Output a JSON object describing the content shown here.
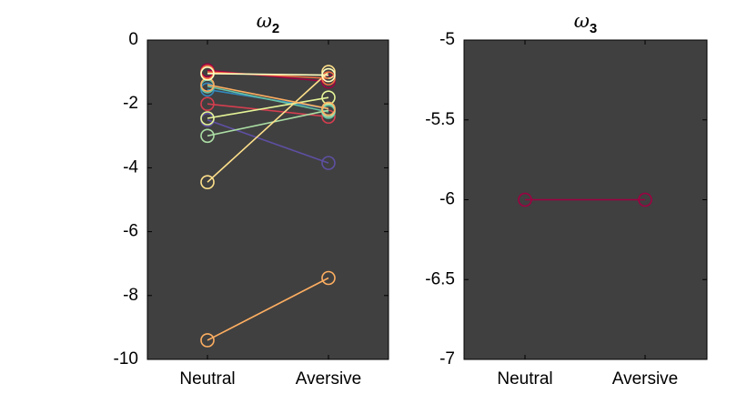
{
  "chart_data": [
    {
      "type": "line",
      "title": "ω",
      "title_subscript": "2",
      "categories": [
        "Neutral",
        "Aversive"
      ],
      "ylim": [
        -10,
        0
      ],
      "yticks": [
        0,
        -2,
        -4,
        -6,
        -8,
        -10
      ],
      "grid": false,
      "background": "#404040",
      "series": [
        {
          "color": "#9e0142",
          "values": [
            -0.95,
            -1.3
          ]
        },
        {
          "color": "#d53e4f",
          "values": [
            -2.0,
            -2.4
          ]
        },
        {
          "color": "#3288bd",
          "values": [
            -1.55,
            -2.15
          ]
        },
        {
          "color": "#66c2a5",
          "values": [
            -1.45,
            -2.25
          ]
        },
        {
          "color": "#5e4fa2",
          "values": [
            -2.5,
            -3.85
          ]
        },
        {
          "color": "#abdda4",
          "values": [
            -3.0,
            -2.2
          ]
        },
        {
          "color": "#e6f598",
          "values": [
            -2.45,
            -1.8
          ]
        },
        {
          "color": "#fee08b",
          "values": [
            -4.45,
            -1.0
          ]
        },
        {
          "color": "#fdae61",
          "values": [
            -1.4,
            -2.15
          ]
        },
        {
          "color": "#f46d43",
          "values": [
            -1.0,
            -1.2
          ]
        },
        {
          "color": "#fdae61",
          "values": [
            -9.4,
            -7.45
          ]
        },
        {
          "color": "#ffffbf",
          "values": [
            -1.05,
            -1.1
          ]
        }
      ]
    },
    {
      "type": "line",
      "title": "ω",
      "title_subscript": "3",
      "categories": [
        "Neutral",
        "Aversive"
      ],
      "ylim": [
        -7,
        -5
      ],
      "yticks": [
        -5,
        -5.5,
        -6,
        -6.5,
        -7
      ],
      "grid": false,
      "background": "#404040",
      "series": [
        {
          "color": "#9e0142",
          "values": [
            -6,
            -6
          ]
        }
      ]
    }
  ]
}
